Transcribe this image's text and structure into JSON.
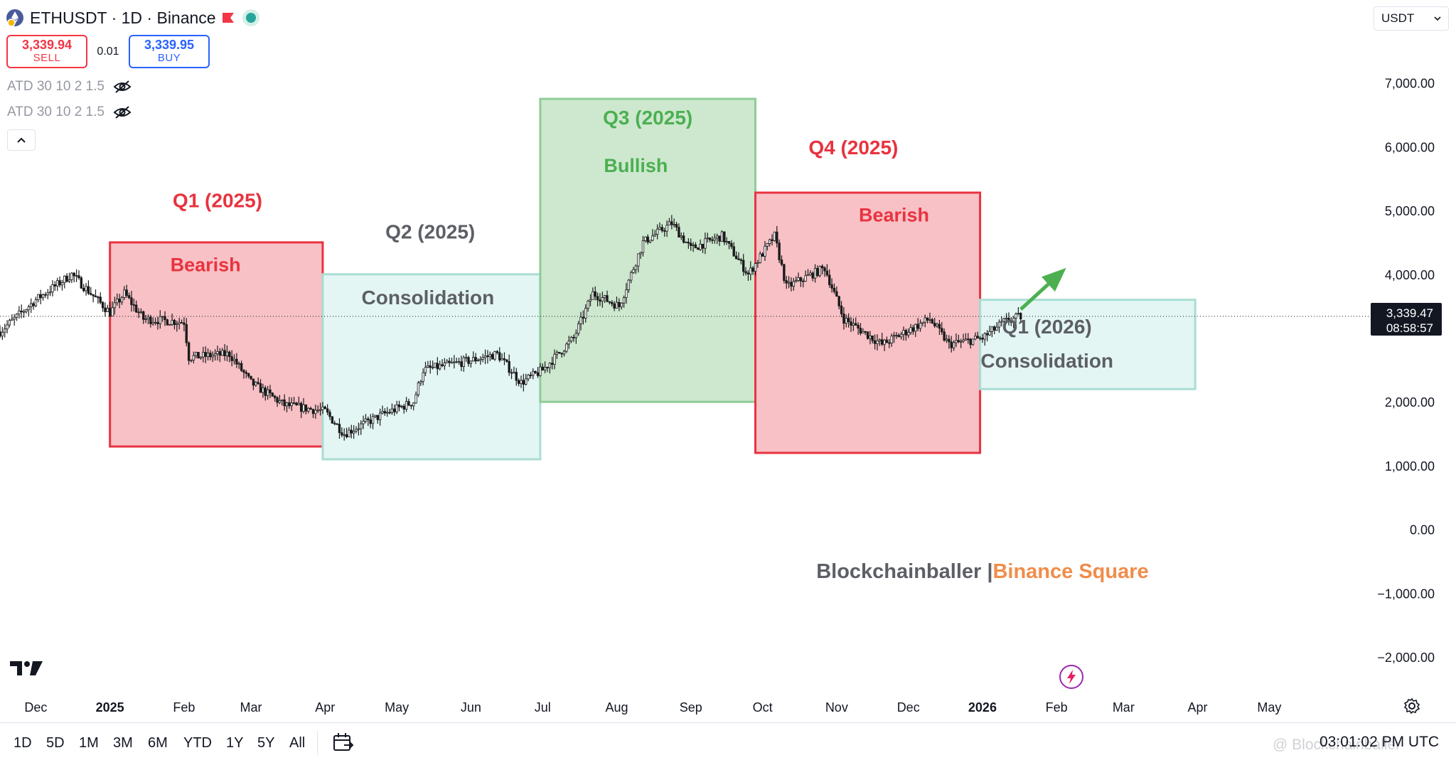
{
  "header": {
    "symbol_title": "ETHUSDT · 1D · Binance",
    "sell_price": "3,339.94",
    "sell_label": "SELL",
    "spread": "0.01",
    "buy_price": "3,339.95",
    "buy_label": "BUY",
    "indicators": [
      "ATD 30 10 2 1.5",
      "ATD 30 10 2 1.5"
    ],
    "currency": "USDT"
  },
  "colors": {
    "bearish_fill": "#f8c1c6",
    "bearish_stroke": "#e8333f",
    "consolidation_fill": "#e3f6f3",
    "consolidation_stroke": "#a9ddd3",
    "bullish_fill": "#cde8cf",
    "bullish_stroke": "#8fcc97",
    "red_text": "#e8333f",
    "green_text": "#4caf50",
    "gray_text": "#5d5f66",
    "orange_text": "#f08d4a",
    "candle": "#1b1b1b"
  },
  "chart_data": {
    "type": "candlestick",
    "y_axis": {
      "ticks": [
        7000,
        6000,
        5000,
        4000,
        3000,
        2000,
        1000,
        0,
        -1000,
        -2000
      ],
      "tick_labels": [
        "7,000.00",
        "6,000.00",
        "5,000.00",
        "4,000.00",
        "",
        "2,000.00",
        "1,000.00",
        "0.00",
        "−1,000.00",
        "−2,000.00"
      ],
      "range": [
        -2400,
        8300
      ]
    },
    "x_axis": {
      "labels": [
        {
          "text": "Dec",
          "date": "2024-12-01",
          "bold": false
        },
        {
          "text": "2025",
          "date": "2025-01-01",
          "bold": true
        },
        {
          "text": "Feb",
          "date": "2025-02-01",
          "bold": false
        },
        {
          "text": "Mar",
          "date": "2025-03-01",
          "bold": false
        },
        {
          "text": "Apr",
          "date": "2025-04-01",
          "bold": false
        },
        {
          "text": "May",
          "date": "2025-05-01",
          "bold": false
        },
        {
          "text": "Jun",
          "date": "2025-06-01",
          "bold": false
        },
        {
          "text": "Jul",
          "date": "2025-07-01",
          "bold": false
        },
        {
          "text": "Aug",
          "date": "2025-08-01",
          "bold": false
        },
        {
          "text": "Sep",
          "date": "2025-09-01",
          "bold": false
        },
        {
          "text": "Oct",
          "date": "2025-10-01",
          "bold": false
        },
        {
          "text": "Nov",
          "date": "2025-11-01",
          "bold": false
        },
        {
          "text": "Dec",
          "date": "2025-12-01",
          "bold": false
        },
        {
          "text": "2026",
          "date": "2026-01-01",
          "bold": true
        },
        {
          "text": "Feb",
          "date": "2026-02-01",
          "bold": false
        },
        {
          "text": "Mar",
          "date": "2026-03-01",
          "bold": false
        },
        {
          "text": "Apr",
          "date": "2026-04-01",
          "bold": false
        },
        {
          "text": "May",
          "date": "2026-05-01",
          "bold": false
        }
      ],
      "range": [
        "2024-11-16",
        "2026-06-13"
      ]
    },
    "price_points": [
      {
        "date": "2024-11-16",
        "price": 3100
      },
      {
        "date": "2024-12-01",
        "price": 3600
      },
      {
        "date": "2024-12-16",
        "price": 4000
      },
      {
        "date": "2025-01-01",
        "price": 3400
      },
      {
        "date": "2025-01-07",
        "price": 3700
      },
      {
        "date": "2025-01-15",
        "price": 3300
      },
      {
        "date": "2025-02-01",
        "price": 3250
      },
      {
        "date": "2025-02-03",
        "price": 2700
      },
      {
        "date": "2025-02-20",
        "price": 2750
      },
      {
        "date": "2025-03-01",
        "price": 2300
      },
      {
        "date": "2025-03-15",
        "price": 1950
      },
      {
        "date": "2025-04-01",
        "price": 1850
      },
      {
        "date": "2025-04-09",
        "price": 1500
      },
      {
        "date": "2025-04-25",
        "price": 1800
      },
      {
        "date": "2025-05-08",
        "price": 2000
      },
      {
        "date": "2025-05-12",
        "price": 2500
      },
      {
        "date": "2025-06-01",
        "price": 2650
      },
      {
        "date": "2025-06-12",
        "price": 2750
      },
      {
        "date": "2025-06-22",
        "price": 2300
      },
      {
        "date": "2025-07-01",
        "price": 2500
      },
      {
        "date": "2025-07-14",
        "price": 3000
      },
      {
        "date": "2025-07-22",
        "price": 3700
      },
      {
        "date": "2025-08-02",
        "price": 3500
      },
      {
        "date": "2025-08-12",
        "price": 4500
      },
      {
        "date": "2025-08-24",
        "price": 4800
      },
      {
        "date": "2025-09-01",
        "price": 4400
      },
      {
        "date": "2025-09-14",
        "price": 4600
      },
      {
        "date": "2025-09-25",
        "price": 4000
      },
      {
        "date": "2025-10-06",
        "price": 4600
      },
      {
        "date": "2025-10-11",
        "price": 3800
      },
      {
        "date": "2025-10-27",
        "price": 4100
      },
      {
        "date": "2025-11-04",
        "price": 3300
      },
      {
        "date": "2025-11-20",
        "price": 2900
      },
      {
        "date": "2025-12-10",
        "price": 3300
      },
      {
        "date": "2025-12-18",
        "price": 2900
      },
      {
        "date": "2026-01-01",
        "price": 3000
      },
      {
        "date": "2026-01-10",
        "price": 3250
      },
      {
        "date": "2026-01-17",
        "price": 3339
      }
    ],
    "current_price": {
      "label": "3,339.47",
      "countdown": "08:58:57",
      "value": 3339.47
    },
    "annotations": [
      {
        "type": "box",
        "style": "bearish",
        "x0": "2025-01-01",
        "x1": "2025-03-31",
        "y0": 1300,
        "y1": 4500
      },
      {
        "type": "box",
        "style": "consolidation",
        "x0": "2025-03-31",
        "x1": "2025-06-30",
        "y0": 1100,
        "y1": 4000
      },
      {
        "type": "box",
        "style": "bullish",
        "x0": "2025-06-30",
        "x1": "2025-09-28",
        "y0": 2000,
        "y1": 6750
      },
      {
        "type": "box",
        "style": "bearish",
        "x0": "2025-09-28",
        "x1": "2025-12-31",
        "y0": 1200,
        "y1": 5280
      },
      {
        "type": "box",
        "style": "consolidation",
        "x0": "2025-12-31",
        "x1": "2026-03-31",
        "y0": 2200,
        "y1": 3600
      },
      {
        "type": "text",
        "text": "Q1 (2025)",
        "color": "red",
        "x": "2025-02-15",
        "y": 5050,
        "size": 28
      },
      {
        "type": "text",
        "text": "Bearish",
        "color": "red",
        "x": "2025-02-10",
        "y": 4050,
        "size": 27
      },
      {
        "type": "text",
        "text": "Q2 (2025)",
        "color": "gray",
        "x": "2025-05-15",
        "y": 4560,
        "size": 28
      },
      {
        "type": "text",
        "text": "Consolidation",
        "color": "gray",
        "x": "2025-05-14",
        "y": 3530,
        "size": 28
      },
      {
        "type": "text",
        "text": "Q3 (2025)",
        "color": "green",
        "x": "2025-08-14",
        "y": 6350,
        "size": 28
      },
      {
        "type": "text",
        "text": "Bullish",
        "color": "green",
        "x": "2025-08-09",
        "y": 5600,
        "size": 27
      },
      {
        "type": "text",
        "text": "Q4 (2025)",
        "color": "red",
        "x": "2025-11-08",
        "y": 5880,
        "size": 28
      },
      {
        "type": "text",
        "text": "Bearish",
        "color": "red",
        "x": "2025-11-25",
        "y": 4830,
        "size": 27
      },
      {
        "type": "text",
        "text": "Q1 (2026)",
        "color": "gray",
        "x": "2026-01-28",
        "y": 3070,
        "size": 28
      },
      {
        "type": "text",
        "text": "Consolidation",
        "color": "gray",
        "x": "2026-01-28",
        "y": 2540,
        "size": 28
      },
      {
        "type": "arrow",
        "color": "green",
        "x0": "2026-01-17",
        "y0": 3450,
        "x1": "2026-02-05",
        "y1": 4100
      }
    ],
    "branding": {
      "left": "Blockchainballer |",
      "right": "Binance Square",
      "x": "2026-01-01",
      "y": -760
    }
  },
  "timeframes": [
    "1D",
    "5D",
    "1M",
    "3M",
    "6M",
    "YTD",
    "1Y",
    "5Y",
    "All"
  ],
  "footer": {
    "clock": "03:01:02 PM UTC",
    "watermark": "@ Blockchainballer"
  }
}
